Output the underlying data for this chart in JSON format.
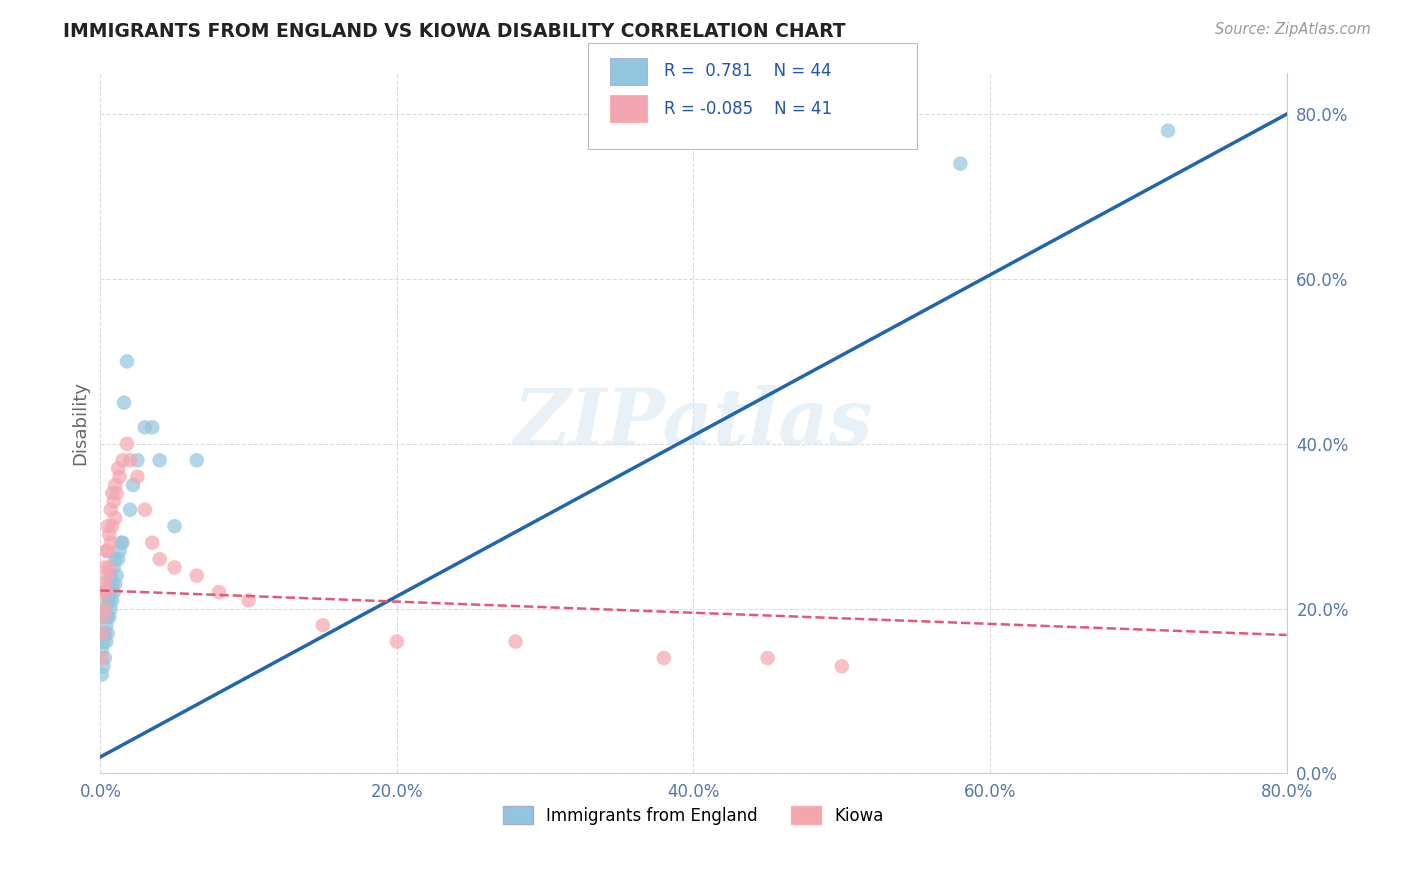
{
  "title": "IMMIGRANTS FROM ENGLAND VS KIOWA DISABILITY CORRELATION CHART",
  "source": "Source: ZipAtlas.com",
  "ylabel": "Disability",
  "watermark": "ZIPatlas",
  "legend_label1": "Immigrants from England",
  "legend_label2": "Kiowa",
  "blue_color": "#92c5de",
  "pink_color": "#f4a6b0",
  "blue_line_color": "#2166ac",
  "pink_line_color": "#e05878",
  "title_color": "#222222",
  "tick_color": "#5577aa",
  "r_value_color": "#2255aa",
  "xmin": 0.0,
  "xmax": 0.8,
  "ymin": 0.0,
  "ymax": 0.85,
  "xticks": [
    0.0,
    0.2,
    0.4,
    0.6,
    0.8
  ],
  "yticks": [
    0.0,
    0.2,
    0.4,
    0.6,
    0.8
  ],
  "blue_scatter_x": [
    0.001,
    0.001,
    0.002,
    0.002,
    0.002,
    0.003,
    0.003,
    0.003,
    0.004,
    0.004,
    0.004,
    0.005,
    0.005,
    0.005,
    0.005,
    0.006,
    0.006,
    0.006,
    0.007,
    0.007,
    0.007,
    0.008,
    0.008,
    0.009,
    0.009,
    0.01,
    0.01,
    0.011,
    0.012,
    0.013,
    0.014,
    0.015,
    0.016,
    0.018,
    0.02,
    0.022,
    0.025,
    0.03,
    0.035,
    0.04,
    0.05,
    0.065,
    0.58,
    0.72
  ],
  "blue_scatter_y": [
    0.12,
    0.15,
    0.13,
    0.16,
    0.17,
    0.14,
    0.17,
    0.19,
    0.16,
    0.18,
    0.2,
    0.17,
    0.19,
    0.21,
    0.22,
    0.19,
    0.21,
    0.23,
    0.2,
    0.22,
    0.24,
    0.21,
    0.23,
    0.22,
    0.25,
    0.23,
    0.26,
    0.24,
    0.26,
    0.27,
    0.28,
    0.28,
    0.45,
    0.5,
    0.32,
    0.35,
    0.38,
    0.42,
    0.42,
    0.38,
    0.3,
    0.38,
    0.74,
    0.78
  ],
  "pink_scatter_x": [
    0.001,
    0.001,
    0.002,
    0.002,
    0.003,
    0.003,
    0.003,
    0.004,
    0.004,
    0.005,
    0.005,
    0.005,
    0.006,
    0.006,
    0.007,
    0.007,
    0.008,
    0.008,
    0.009,
    0.01,
    0.01,
    0.011,
    0.012,
    0.013,
    0.015,
    0.018,
    0.02,
    0.025,
    0.03,
    0.035,
    0.04,
    0.05,
    0.065,
    0.08,
    0.1,
    0.15,
    0.2,
    0.28,
    0.38,
    0.45,
    0.5
  ],
  "pink_scatter_y": [
    0.14,
    0.17,
    0.19,
    0.22,
    0.2,
    0.23,
    0.25,
    0.22,
    0.27,
    0.24,
    0.27,
    0.3,
    0.25,
    0.29,
    0.28,
    0.32,
    0.3,
    0.34,
    0.33,
    0.31,
    0.35,
    0.34,
    0.37,
    0.36,
    0.38,
    0.4,
    0.38,
    0.36,
    0.32,
    0.28,
    0.26,
    0.25,
    0.24,
    0.22,
    0.21,
    0.18,
    0.16,
    0.16,
    0.14,
    0.14,
    0.13
  ],
  "blue_line_x": [
    0.0,
    0.8
  ],
  "blue_line_y": [
    0.02,
    0.8
  ],
  "pink_line_x": [
    0.0,
    0.8
  ],
  "pink_line_y": [
    0.222,
    0.168
  ],
  "grid_color": "#cccccc",
  "bg_color": "#ffffff"
}
